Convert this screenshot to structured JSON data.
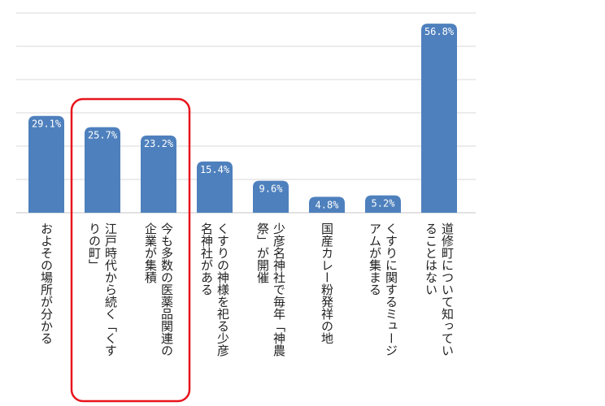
{
  "chart_data": {
    "type": "bar",
    "categories": [
      "およその場所が分かる",
      "江戸時代から続く「くすりの町」",
      "今も多数の医薬品関連の企業が集積",
      "くすりの神様を祀る少彦名神社がある",
      "少彦名神社で毎年「神農祭」が開催",
      "国産カレー粉発祥の地",
      "くすりに関するミュージアムが集まる",
      "道修町について知っていることはない"
    ],
    "category_lines": [
      [
        "およその場所が分かる"
      ],
      [
        "江戸時代から続く「くす",
        "りの町」"
      ],
      [
        "今も多数の医薬品関連の",
        "企業が集積"
      ],
      [
        "くすりの神様を祀る少彦",
        "名神社がある"
      ],
      [
        "少彦名神社で毎年「神農",
        "祭」が開催"
      ],
      [
        "国産カレー粉発祥の地"
      ],
      [
        "くすりに関するミュージ",
        "アムが集まる"
      ],
      [
        "道修町について知ってい",
        "ることはない"
      ]
    ],
    "values": [
      29.1,
      25.7,
      23.2,
      15.4,
      9.6,
      4.8,
      5.2,
      56.8
    ],
    "data_labels": [
      "29.1%",
      "25.7%",
      "23.2%",
      "15.4%",
      "9.6%",
      "4.8%",
      "5.2%",
      "56.8%"
    ],
    "ylim": [
      0,
      60
    ],
    "grid": true,
    "bar_color": "#4e80bd",
    "gridline_color": "#d9d9d9",
    "highlight": {
      "indices": [
        1,
        2
      ],
      "color": "#e8141c"
    },
    "title": "",
    "xlabel": "",
    "ylabel": ""
  }
}
